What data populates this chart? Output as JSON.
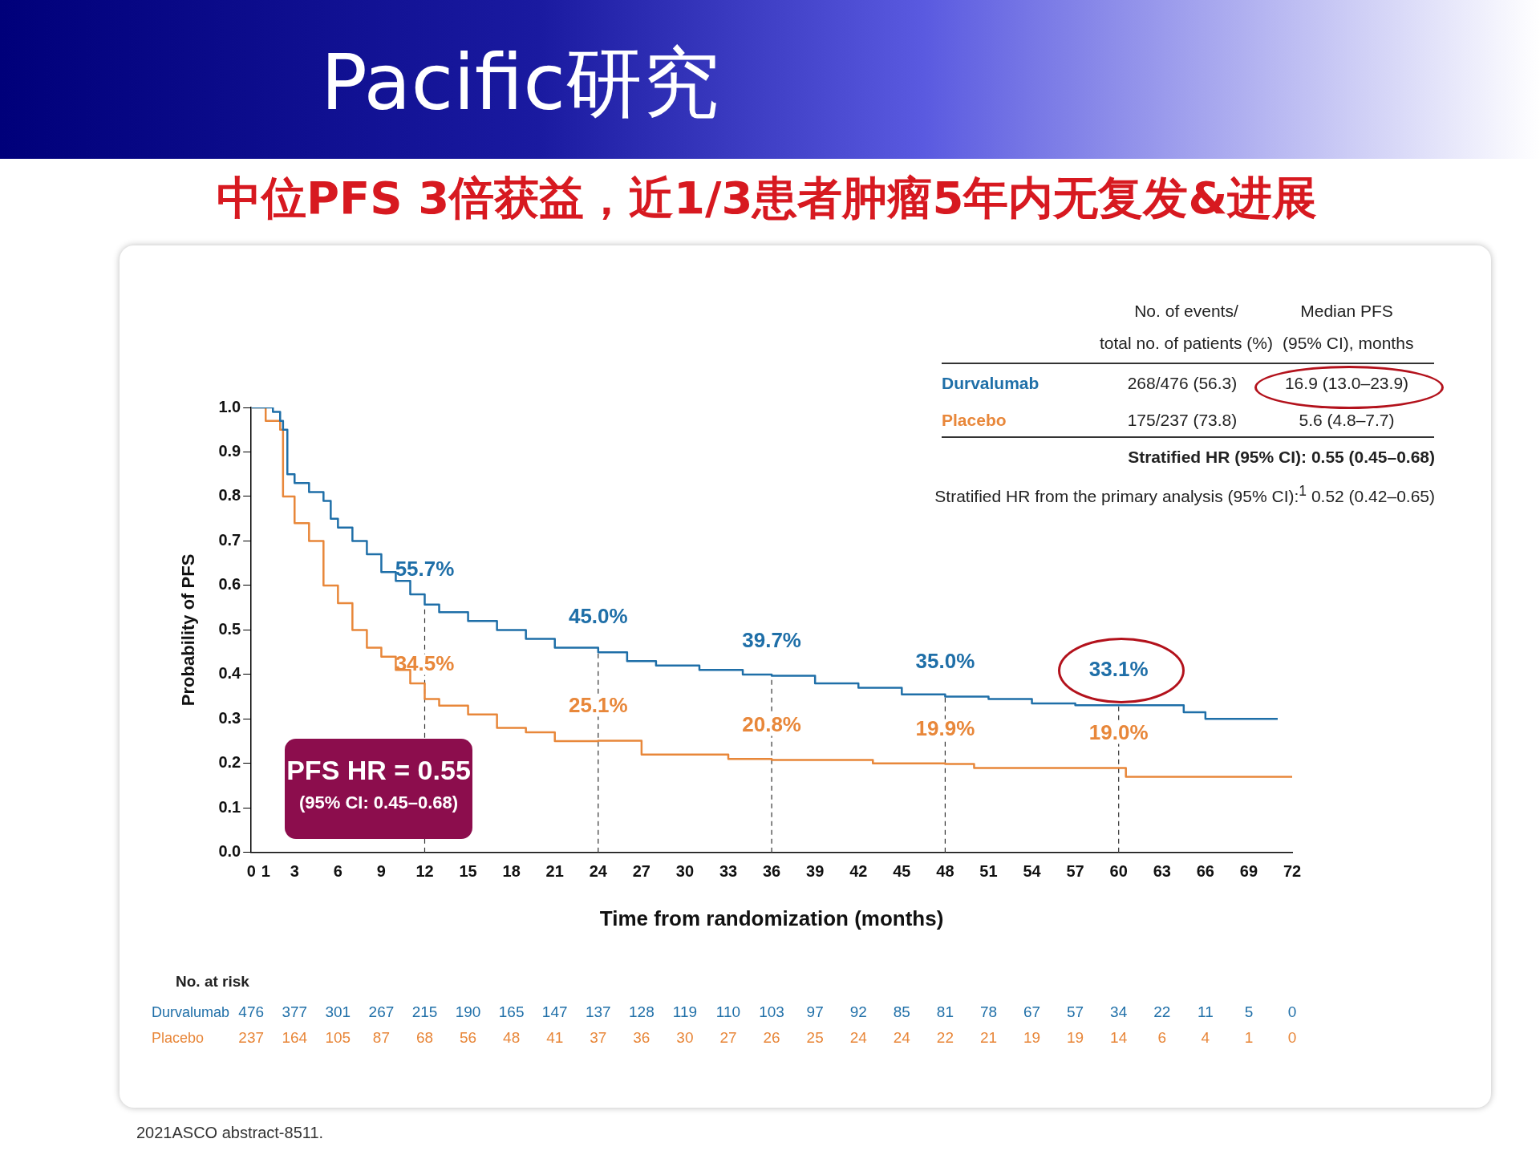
{
  "chart_data": {
    "type": "step",
    "title": "Pacific研究",
    "subtitle": "中位PFS 3倍获益，近1/3患者肿瘤5年内无复发&进展",
    "xlabel": "Time from randomization (months)",
    "ylabel": "Probability of PFS",
    "xlim": [
      0,
      72
    ],
    "ylim": [
      0,
      1
    ],
    "xticks": [
      0,
      1,
      3,
      6,
      9,
      12,
      15,
      18,
      21,
      24,
      27,
      30,
      33,
      36,
      39,
      42,
      45,
      48,
      51,
      54,
      57,
      60,
      63,
      66,
      69,
      72
    ],
    "yticks": [
      {
        "value": 0,
        "label": "0.0"
      },
      {
        "value": 0.1,
        "label": "0.1"
      },
      {
        "value": 0.2,
        "label": "0.2"
      },
      {
        "value": 0.3,
        "label": "0.3"
      },
      {
        "value": 0.4,
        "label": "0.4"
      },
      {
        "value": 0.5,
        "label": "0.5"
      },
      {
        "value": 0.6,
        "label": "0.6"
      },
      {
        "value": 0.7,
        "label": "0.7"
      },
      {
        "value": 0.8,
        "label": "0.8"
      },
      {
        "value": 0.9,
        "label": "0.9"
      },
      {
        "value": 1,
        "label": "1.0"
      }
    ],
    "grid": false,
    "legend": false,
    "marker": "none",
    "series": [
      {
        "name": "Durvalumab",
        "color": "#1f6fa8",
        "x": [
          0,
          1,
          1.5,
          2,
          2.2,
          2.5,
          3,
          4,
          5,
          5.5,
          6,
          7,
          8,
          9,
          10,
          11,
          12,
          13,
          15,
          17,
          19,
          21,
          24,
          26,
          28,
          31,
          34,
          36,
          39,
          42,
          45,
          48,
          51,
          54,
          57,
          60,
          64.5,
          66,
          71
        ],
        "values": [
          1,
          1,
          0.99,
          0.97,
          0.95,
          0.85,
          0.83,
          0.81,
          0.79,
          0.75,
          0.73,
          0.7,
          0.67,
          0.63,
          0.61,
          0.58,
          0.557,
          0.54,
          0.52,
          0.5,
          0.48,
          0.46,
          0.45,
          0.43,
          0.42,
          0.41,
          0.4,
          0.397,
          0.38,
          0.37,
          0.355,
          0.35,
          0.345,
          0.335,
          0.331,
          0.331,
          0.315,
          0.3,
          0.3
        ]
      },
      {
        "name": "Placebo",
        "color": "#e8873a",
        "x": [
          0,
          1,
          2,
          2.2,
          3,
          4,
          5,
          6,
          7,
          8,
          9,
          10,
          11,
          12,
          13,
          15,
          17,
          19,
          21,
          24,
          27,
          33,
          36,
          43,
          48,
          50,
          60.5,
          72
        ],
        "values": [
          1,
          0.97,
          0.95,
          0.8,
          0.74,
          0.7,
          0.6,
          0.56,
          0.5,
          0.46,
          0.44,
          0.41,
          0.38,
          0.345,
          0.33,
          0.31,
          0.28,
          0.27,
          0.25,
          0.251,
          0.22,
          0.21,
          0.208,
          0.2,
          0.199,
          0.19,
          0.17,
          0.17
        ]
      }
    ],
    "ref_lines": [
      {
        "axis": "x",
        "value": 12,
        "line_style": "dashed"
      },
      {
        "axis": "x",
        "value": 24,
        "line_style": "dashed"
      },
      {
        "axis": "x",
        "value": 36,
        "line_style": "dashed"
      },
      {
        "axis": "x",
        "value": 48,
        "line_style": "dashed"
      },
      {
        "axis": "x",
        "value": 60,
        "line_style": "dashed"
      }
    ],
    "annotations": [
      {
        "text": "55.7%",
        "x": 12,
        "y": 0.557
      },
      {
        "text": "45.0%",
        "x": 24,
        "y": 0.45
      },
      {
        "text": "39.7%",
        "x": 36,
        "y": 0.397
      },
      {
        "text": "35.0%",
        "x": 48,
        "y": 0.35
      },
      {
        "text": "33.1%",
        "x": 60,
        "y": 0.331
      },
      {
        "text": "34.5%",
        "x": 12,
        "y": 0.345
      },
      {
        "text": "25.1%",
        "x": 24,
        "y": 0.251
      },
      {
        "text": "20.8%",
        "x": 36,
        "y": 0.208
      },
      {
        "text": "19.9%",
        "x": 48,
        "y": 0.199
      },
      {
        "text": "19.0%",
        "x": 60,
        "y": 0.19
      },
      "No. of events/\ntotal no. of patients (%)",
      "Median PFS\n(95% CI), months",
      "268/476 (56.3)",
      "16.9 (13.0–23.9)",
      "175/237 (73.8)",
      "5.6 (4.8–7.7)",
      "Stratified HR (95% CI): 0.55 (0.45–0.68)",
      "Stratified HR from the primary analysis (95% CI):$^{1}$ 0.52 (0.42–0.65)",
      "PFS HR = 0.55",
      "(95% CI: 0.45–0.68)",
      "No. at risk",
      "476 377 301 267 215 190 165 147 137 128 119 110 103 97 92 85 81 78 67 57 34 22 11 5 0",
      "237 164 105 87 68 56 48 41 37 36 30 27 26 25 24 24 22 21 19 19 14 6 4 1 0",
      "2021ASCO abstract-8511."
    ]
  }
}
